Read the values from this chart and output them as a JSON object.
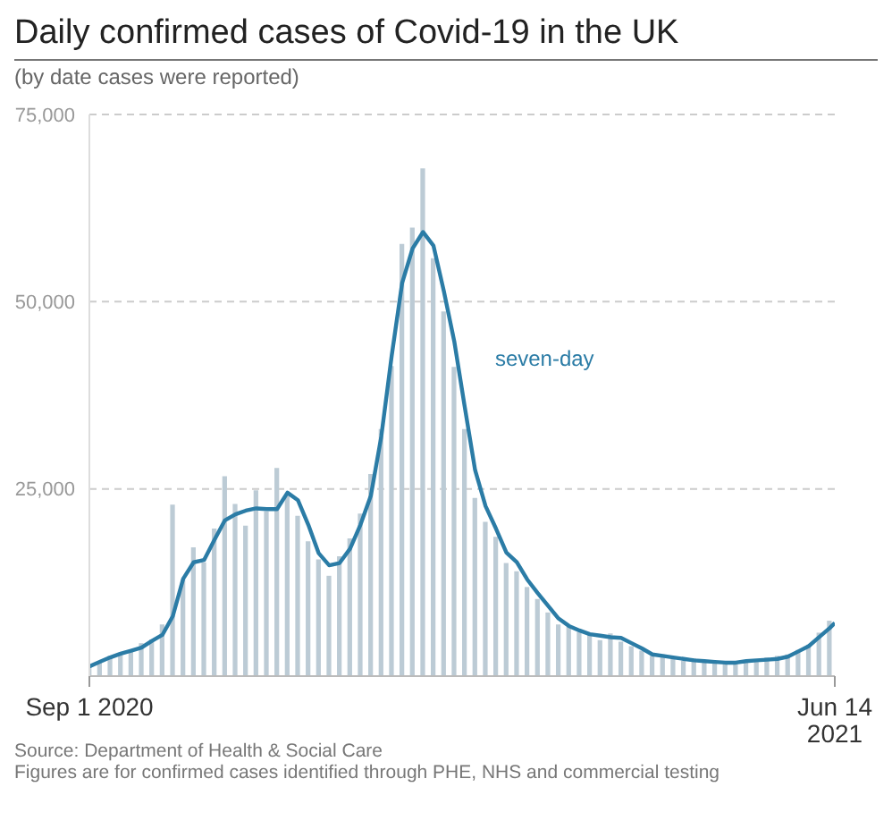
{
  "chart_data": {
    "type": "bar",
    "title": "Daily confirmed cases of Covid-19 in the UK",
    "subtitle": "(by date cases were reported)",
    "annotations": [
      "Source: Department of Health & Social Care",
      "Figures are for confirmed cases identified through PHE, NHS and commercial testing"
    ],
    "xlim": [
      "2020-09-01",
      "2021-06-14"
    ],
    "xticks": [
      {
        "value": "2020-09-01",
        "label": "Sep 1 2020"
      },
      {
        "value": "2021-06-14",
        "label": "Jun 14 2021"
      }
    ],
    "ylim": [
      0,
      75000
    ],
    "yticks": [
      {
        "value": 25000,
        "label": "25,000"
      },
      {
        "value": 50000,
        "label": "50,000"
      },
      {
        "value": 75000,
        "label": "75,000"
      }
    ],
    "grid": "y",
    "legend": false,
    "series": [
      {
        "color": "#bccbd5",
        "x": [
          "2020-09-01",
          "2020-09-05",
          "2020-09-09",
          "2020-09-13",
          "2020-09-17",
          "2020-09-21",
          "2020-09-25",
          "2020-09-29",
          "2020-10-03",
          "2020-10-07",
          "2020-10-11",
          "2020-10-15",
          "2020-10-19",
          "2020-10-23",
          "2020-10-27",
          "2020-10-31",
          "2020-11-04",
          "2020-11-08",
          "2020-11-12",
          "2020-11-16",
          "2020-11-20",
          "2020-11-24",
          "2020-11-28",
          "2020-12-02",
          "2020-12-06",
          "2020-12-10",
          "2020-12-14",
          "2020-12-18",
          "2020-12-22",
          "2020-12-26",
          "2020-12-30",
          "2021-01-03",
          "2021-01-07",
          "2021-01-11",
          "2021-01-15",
          "2021-01-19",
          "2021-01-23",
          "2021-01-27",
          "2021-01-31",
          "2021-02-04",
          "2021-02-08",
          "2021-02-12",
          "2021-02-16",
          "2021-02-20",
          "2021-02-24",
          "2021-02-28",
          "2021-03-04",
          "2021-03-08",
          "2021-03-12",
          "2021-03-16",
          "2021-03-20",
          "2021-03-24",
          "2021-03-28",
          "2021-04-01",
          "2021-04-05",
          "2021-04-09",
          "2021-04-13",
          "2021-04-17",
          "2021-04-21",
          "2021-04-25",
          "2021-04-29",
          "2021-05-03",
          "2021-05-07",
          "2021-05-11",
          "2021-05-15",
          "2021-05-19",
          "2021-05-23",
          "2021-05-27",
          "2021-05-31",
          "2021-06-04",
          "2021-06-08",
          "2021-06-12"
        ],
        "values": [
          1400,
          2000,
          2700,
          3100,
          3300,
          4400,
          4900,
          6900,
          22900,
          12900,
          17200,
          15200,
          19700,
          26700,
          23000,
          20100,
          24800,
          22000,
          27800,
          24200,
          21400,
          18000,
          15600,
          13400,
          16000,
          18400,
          21700,
          27000,
          33000,
          41400,
          57700,
          59900,
          67800,
          55800,
          48700,
          41300,
          33000,
          23800,
          20600,
          18600,
          15100,
          14000,
          11900,
          10300,
          8500,
          6900,
          6600,
          5900,
          5500,
          4800,
          5700,
          4600,
          4000,
          3400,
          2700,
          2900,
          2300,
          2100,
          2400,
          1800,
          2000,
          1700,
          2000,
          2100,
          1900,
          2500,
          2700,
          2900,
          3500,
          4200,
          5800,
          7400
        ]
      },
      {
        "type": "line",
        "name": "seven-day",
        "color": "#2b7ca6",
        "x": [
          "2020-09-01",
          "2020-09-05",
          "2020-09-09",
          "2020-09-13",
          "2020-09-17",
          "2020-09-21",
          "2020-09-25",
          "2020-09-29",
          "2020-10-03",
          "2020-10-07",
          "2020-10-11",
          "2020-10-15",
          "2020-10-19",
          "2020-10-23",
          "2020-10-27",
          "2020-10-31",
          "2020-11-04",
          "2020-11-08",
          "2020-11-12",
          "2020-11-16",
          "2020-11-20",
          "2020-11-24",
          "2020-11-28",
          "2020-12-02",
          "2020-12-06",
          "2020-12-10",
          "2020-12-14",
          "2020-12-18",
          "2020-12-22",
          "2020-12-26",
          "2020-12-30",
          "2021-01-03",
          "2021-01-07",
          "2021-01-11",
          "2021-01-15",
          "2021-01-19",
          "2021-01-23",
          "2021-01-27",
          "2021-01-31",
          "2021-02-04",
          "2021-02-08",
          "2021-02-12",
          "2021-02-16",
          "2021-02-20",
          "2021-02-24",
          "2021-02-28",
          "2021-03-04",
          "2021-03-08",
          "2021-03-12",
          "2021-03-16",
          "2021-03-20",
          "2021-03-24",
          "2021-03-28",
          "2021-04-01",
          "2021-04-05",
          "2021-04-09",
          "2021-04-13",
          "2021-04-17",
          "2021-04-21",
          "2021-04-25",
          "2021-04-29",
          "2021-05-03",
          "2021-05-07",
          "2021-05-11",
          "2021-05-15",
          "2021-05-19",
          "2021-05-23",
          "2021-05-27",
          "2021-05-31",
          "2021-06-04",
          "2021-06-08",
          "2021-06-12",
          "2021-06-14"
        ],
        "values": [
          1300,
          1900,
          2500,
          3000,
          3400,
          3800,
          4700,
          5500,
          8000,
          13000,
          15200,
          15500,
          18200,
          20800,
          21600,
          22100,
          22400,
          22300,
          22300,
          24500,
          23500,
          20200,
          16400,
          14800,
          15100,
          17000,
          20200,
          24100,
          32000,
          42800,
          52500,
          57100,
          59300,
          57500,
          51400,
          44700,
          36000,
          27500,
          22700,
          19700,
          16500,
          15200,
          12900,
          11100,
          9400,
          7700,
          6700,
          6100,
          5600,
          5400,
          5200,
          5100,
          4400,
          3700,
          2900,
          2700,
          2500,
          2300,
          2100,
          2000,
          1900,
          1800,
          1800,
          2000,
          2100,
          2200,
          2300,
          2600,
          3300,
          4000,
          5200,
          6400,
          7100
        ]
      }
    ]
  }
}
